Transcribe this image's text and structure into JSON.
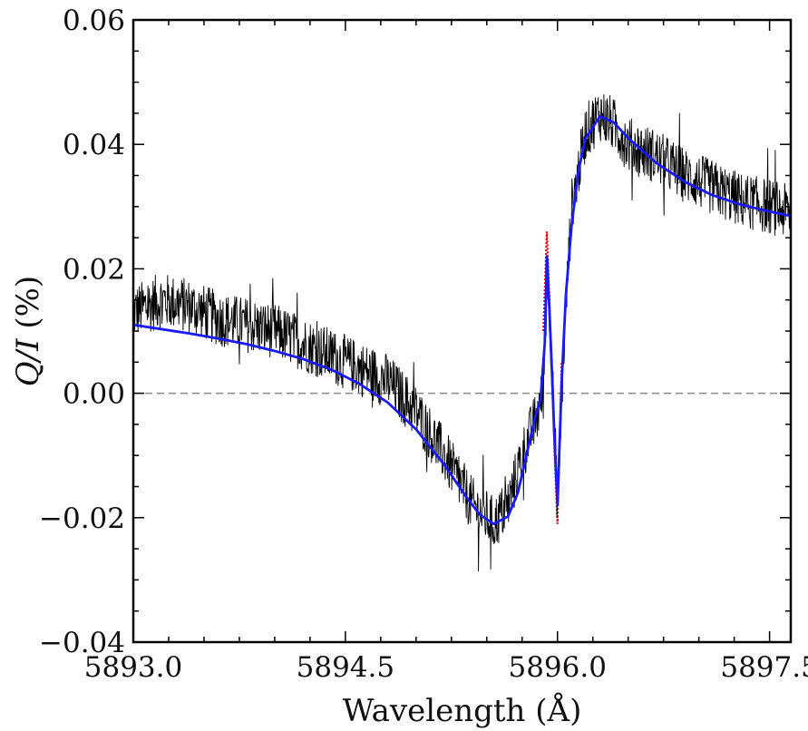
{
  "chart_data": {
    "type": "line",
    "title": "",
    "xlabel": "Wavelength (Å)",
    "ylabel_symbol": "Q/I",
    "ylabel_unit": "(%)",
    "xlim": [
      5893.0,
      5897.65
    ],
    "ylim": [
      -0.04,
      0.06
    ],
    "x_ticks": [
      5893.0,
      5894.5,
      5896.0,
      5897.5
    ],
    "x_tick_labels": [
      "5893.0",
      "5894.5",
      "5896.0",
      "5897.5"
    ],
    "y_ticks": [
      -0.04,
      -0.02,
      0.0,
      0.02,
      0.04,
      0.06
    ],
    "y_tick_labels": [
      "−0.04",
      "−0.02",
      "0.00",
      "0.02",
      "0.04",
      "0.06"
    ],
    "zero_line": {
      "y": 0.0,
      "style": "dashed",
      "color": "#888888"
    },
    "grid": false,
    "legend": "none",
    "series": [
      {
        "role": "observed",
        "style": "noisy-line",
        "color": "#000000",
        "x": [
          5893.0,
          5893.2,
          5893.4,
          5893.6,
          5893.8,
          5894.0,
          5894.2,
          5894.4,
          5894.6,
          5894.8,
          5895.0,
          5895.2,
          5895.4,
          5895.55,
          5895.65,
          5895.75,
          5895.85,
          5895.9,
          5895.93,
          5895.96,
          5896.0,
          5896.05,
          5896.1,
          5896.2,
          5896.3,
          5896.4,
          5896.5,
          5896.7,
          5896.9,
          5897.1,
          5897.3,
          5897.5,
          5897.65
        ],
        "values": [
          0.013,
          0.015,
          0.014,
          0.012,
          0.011,
          0.01,
          0.008,
          0.006,
          0.004,
          0.002,
          -0.003,
          -0.01,
          -0.018,
          -0.021,
          -0.018,
          -0.01,
          -0.004,
          0.0,
          0.02,
          0.005,
          -0.018,
          0.01,
          0.03,
          0.042,
          0.045,
          0.043,
          0.04,
          0.038,
          0.035,
          0.033,
          0.031,
          0.03,
          0.029
        ]
      },
      {
        "role": "fit",
        "style": "solid",
        "color": "#1a1aff",
        "x": [
          5893.0,
          5893.2,
          5893.4,
          5893.6,
          5893.8,
          5894.0,
          5894.2,
          5894.4,
          5894.6,
          5894.8,
          5895.0,
          5895.2,
          5895.35,
          5895.45,
          5895.55,
          5895.65,
          5895.72,
          5895.78,
          5895.84,
          5895.88,
          5895.91,
          5895.925,
          5895.94,
          5895.96,
          5895.98,
          5896.0,
          5896.03,
          5896.06,
          5896.1,
          5896.15,
          5896.2,
          5896.3,
          5896.4,
          5896.5,
          5896.7,
          5896.9,
          5897.1,
          5897.3,
          5897.5,
          5897.65
        ],
        "values": [
          0.011,
          0.0103,
          0.0096,
          0.0088,
          0.0079,
          0.0068,
          0.0055,
          0.0038,
          0.0015,
          -0.0015,
          -0.0058,
          -0.0115,
          -0.0165,
          -0.0195,
          -0.021,
          -0.0198,
          -0.016,
          -0.01,
          -0.004,
          -0.001,
          0.008,
          0.022,
          0.015,
          0.004,
          -0.008,
          -0.018,
          0.002,
          0.016,
          0.027,
          0.036,
          0.041,
          0.0445,
          0.0435,
          0.041,
          0.037,
          0.034,
          0.0318,
          0.0303,
          0.0292,
          0.0285
        ]
      },
      {
        "role": "fit-alt",
        "style": "dotted",
        "color": "#e00000",
        "x": [
          5895.9,
          5895.925,
          5895.94,
          5895.98,
          5896.0,
          5896.03
        ],
        "values": [
          0.01,
          0.026,
          0.017,
          -0.01,
          -0.021,
          0.005
        ]
      }
    ]
  }
}
